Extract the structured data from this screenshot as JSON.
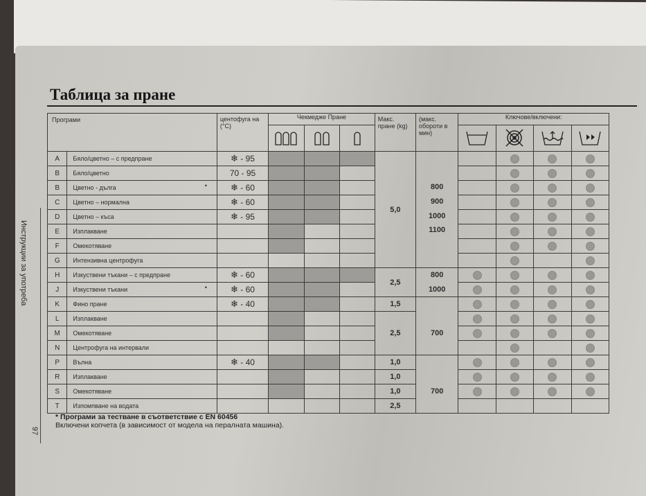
{
  "title": "Таблица за пране",
  "side_label": "Инструкции за употреба",
  "page_number": "97",
  "headers": {
    "programs": "Програми",
    "temp": "центофуга на (°C)",
    "drawer": "Чекмедже Пране",
    "max_load": "Макс. пране (kg)",
    "max_rpm": "(макс. обороти в мин)",
    "keys": "Ключове/включени:",
    "drawer_icons": [
      "prewash-compartment-icon",
      "main-wash-compartment-icon",
      "softener-compartment-icon"
    ],
    "key_icons": [
      "wash-tub-icon",
      "no-spin-icon",
      "rinse-hold-icon",
      "quick-wash-icon"
    ]
  },
  "rows": [
    {
      "letter": "A",
      "name": "Бяло/цветно – с предпране",
      "cold": true,
      "temp": "- 95",
      "ast": false,
      "drawers": [
        1,
        1,
        1
      ],
      "keys": [
        0,
        1,
        1,
        1
      ]
    },
    {
      "letter": "B",
      "name": "Бяло/цветно",
      "cold": false,
      "temp": "70 - 95",
      "ast": false,
      "drawers": [
        1,
        1,
        0
      ],
      "keys": [
        0,
        1,
        1,
        1
      ]
    },
    {
      "letter": "B",
      "name": "Цветно - дълга",
      "cold": true,
      "temp": "- 60",
      "ast": true,
      "drawers": [
        1,
        1,
        0
      ],
      "keys": [
        0,
        1,
        1,
        1
      ]
    },
    {
      "letter": "C",
      "name": "Цветно – нормална",
      "cold": true,
      "temp": "- 60",
      "ast": false,
      "drawers": [
        1,
        1,
        0
      ],
      "keys": [
        0,
        1,
        1,
        1
      ]
    },
    {
      "letter": "D",
      "name": "Цветно – къса",
      "cold": true,
      "temp": "- 95",
      "ast": false,
      "drawers": [
        1,
        1,
        0
      ],
      "keys": [
        0,
        1,
        1,
        1
      ]
    },
    {
      "letter": "E",
      "name": "Изплакване",
      "cold": false,
      "temp": "",
      "ast": false,
      "drawers": [
        1,
        0,
        0
      ],
      "keys": [
        0,
        1,
        1,
        1
      ]
    },
    {
      "letter": "F",
      "name": "Омекотяване",
      "cold": false,
      "temp": "",
      "ast": false,
      "drawers": [
        1,
        0,
        0
      ],
      "keys": [
        0,
        1,
        1,
        1
      ]
    },
    {
      "letter": "G",
      "name": "Интензивна центрофуга",
      "cold": false,
      "temp": "",
      "ast": false,
      "drawers": [
        0,
        0,
        0
      ],
      "keys": [
        0,
        1,
        0,
        1
      ]
    },
    {
      "letter": "H",
      "name": "Изкуствени тъкани – с предпране",
      "cold": true,
      "temp": "- 60",
      "ast": false,
      "drawers": [
        1,
        1,
        1
      ],
      "keys": [
        1,
        1,
        1,
        1
      ]
    },
    {
      "letter": "J",
      "name": "Изкуствени тъкани",
      "cold": true,
      "temp": "- 60",
      "ast": true,
      "drawers": [
        1,
        1,
        0
      ],
      "keys": [
        1,
        1,
        1,
        1
      ]
    },
    {
      "letter": "K",
      "name": "Фино пране",
      "cold": true,
      "temp": "- 40",
      "ast": false,
      "drawers": [
        1,
        1,
        0
      ],
      "keys": [
        1,
        1,
        1,
        1
      ]
    },
    {
      "letter": "L",
      "name": "Изплакване",
      "cold": false,
      "temp": "",
      "ast": false,
      "drawers": [
        1,
        0,
        0
      ],
      "keys": [
        1,
        1,
        1,
        1
      ]
    },
    {
      "letter": "M",
      "name": "Омекотяване",
      "cold": false,
      "temp": "",
      "ast": false,
      "drawers": [
        1,
        0,
        0
      ],
      "keys": [
        1,
        1,
        1,
        1
      ]
    },
    {
      "letter": "N",
      "name": "Центрофуга на интервали",
      "cold": false,
      "temp": "",
      "ast": false,
      "drawers": [
        0,
        0,
        0
      ],
      "keys": [
        0,
        1,
        0,
        1
      ]
    },
    {
      "letter": "P",
      "name": "Вълна",
      "cold": true,
      "temp": "- 40",
      "ast": false,
      "drawers": [
        1,
        1,
        0
      ],
      "keys": [
        1,
        1,
        1,
        1
      ]
    },
    {
      "letter": "R",
      "name": "Изплакване",
      "cold": false,
      "temp": "",
      "ast": false,
      "drawers": [
        1,
        0,
        0
      ],
      "keys": [
        1,
        1,
        1,
        1
      ]
    },
    {
      "letter": "S",
      "name": "Омекотяване",
      "cold": false,
      "temp": "",
      "ast": false,
      "drawers": [
        1,
        0,
        0
      ],
      "keys": [
        1,
        1,
        1,
        1
      ]
    },
    {
      "letter": "T",
      "name": "Изпомпване на водата",
      "cold": false,
      "temp": "",
      "ast": false,
      "drawers": [
        0,
        0,
        0
      ],
      "keys": [
        0,
        0,
        0,
        0
      ]
    }
  ],
  "kg_groups": [
    {
      "value": "5,0",
      "span": 8
    },
    {
      "value": "2,5",
      "span": 2
    },
    {
      "value": "1,5",
      "span": 1
    },
    {
      "value": "2,5",
      "span": 3
    },
    {
      "value": "1,0",
      "span": 1
    },
    {
      "value": "1,0",
      "span": 1
    },
    {
      "value": "1,0",
      "span": 1
    },
    {
      "value": "2,5",
      "span": 1
    }
  ],
  "rpm_groups": [
    {
      "values": [
        "",
        "",
        "800",
        "900",
        "1000",
        "1100"
      ],
      "span": 8
    },
    {
      "values": [
        "800",
        "1000"
      ],
      "span": 2
    },
    {
      "values": [
        "",
        "",
        "700"
      ],
      "span": 4
    },
    {
      "values": [
        "",
        "",
        "700"
      ],
      "span": 4
    }
  ],
  "asterisk": "•",
  "footnote": {
    "bold": "* Програми за тестване в съответствие с EN 60456",
    "text": "Включени копчета (в зависимост от модела на пералната машина)."
  }
}
